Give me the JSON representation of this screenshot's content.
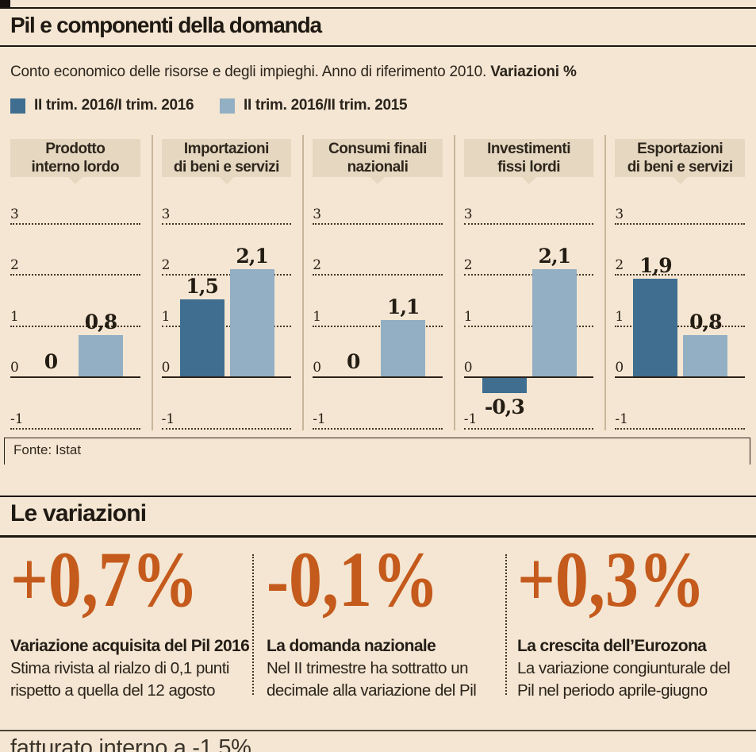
{
  "header": {
    "title": "Pil e componenti della domanda",
    "subtitle": "Conto economico delle risorse e degli impieghi. Anno di riferimento 2010.",
    "subtitle_bold": "Variazioni %"
  },
  "legend": {
    "items": [
      {
        "label": "II trim. 2016/I trim. 2016",
        "color": "#3f6e90"
      },
      {
        "label": "II trim. 2016/II trim. 2015",
        "color": "#93afc3"
      }
    ]
  },
  "chart_data": {
    "type": "bar",
    "title": "Pil e componenti della domanda",
    "subtitle": "Conto economico delle risorse e degli impieghi. Anno di riferimento 2010. Variazioni %",
    "categories": [
      "Prodotto interno lordo",
      "Importazioni di beni e servizi",
      "Consumi finali nazionali",
      "Investimenti fissi lordi",
      "Esportazioni di beni e servizi"
    ],
    "category_lines": [
      [
        "Prodotto",
        "interno lordo"
      ],
      [
        "Importazioni",
        "di beni e servizi"
      ],
      [
        "Consumi finali",
        "nazionali"
      ],
      [
        "Investimenti",
        "fissi lordi"
      ],
      [
        "Esportazioni",
        "di beni e servizi"
      ]
    ],
    "series": [
      {
        "name": "II trim. 2016/I trim. 2016",
        "color": "#3f6e90",
        "values": [
          0,
          1.5,
          0,
          -0.3,
          1.9
        ],
        "labels": [
          "0",
          "1,5",
          "0",
          "-0,3",
          "1,9"
        ]
      },
      {
        "name": "II trim. 2016/II trim. 2015",
        "color": "#93afc3",
        "values": [
          0.8,
          2.1,
          1.1,
          2.1,
          0.8
        ],
        "labels": [
          "0,8",
          "2,1",
          "1,1",
          "2,1",
          "0,8"
        ]
      }
    ],
    "ylim": [
      -1,
      3
    ],
    "yticks": [
      3,
      2,
      1,
      0,
      -1
    ],
    "grid": "dotted-horizontal",
    "legend_position": "top-left",
    "source": "Fonte: Istat"
  },
  "variazioni": {
    "title": "Le variazioni",
    "accent_color": "#c45a1c",
    "items": [
      {
        "value": "+0,7%",
        "caption": "Variazione acquisita del Pil 2016",
        "body1": "Stima rivista al rialzo di 0,1 punti",
        "body2": "rispetto a quella del 12 agosto"
      },
      {
        "value": "-0,1%",
        "caption": "La domanda nazionale",
        "body1": "Nel II trimestre ha sottratto un",
        "body2": "decimale alla variazione del Pil"
      },
      {
        "value": "+0,3%",
        "caption": "La crescita dell’Eurozona",
        "body1": "La variazione congiunturale del",
        "body2": "Pil nel periodo aprile-giugno"
      }
    ]
  },
  "footer": {
    "partial_text": "fatturato interno a -1,5%"
  }
}
